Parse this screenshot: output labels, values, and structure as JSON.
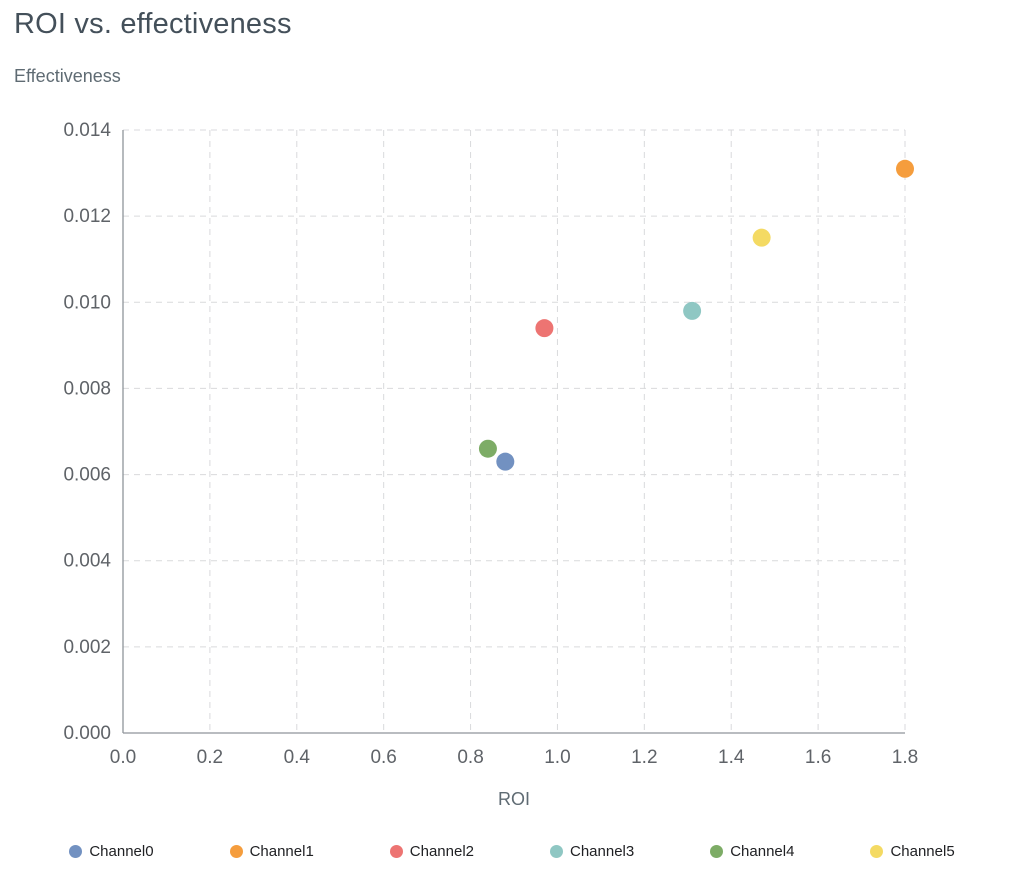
{
  "chart_data": {
    "type": "scatter",
    "title": "ROI vs. effectiveness",
    "xlabel": "ROI",
    "ylabel": "Effectiveness",
    "xlim": [
      0.0,
      1.8
    ],
    "ylim": [
      0.0,
      0.014
    ],
    "x_ticks": [
      0.0,
      0.2,
      0.4,
      0.6,
      0.8,
      1.0,
      1.2,
      1.4,
      1.6,
      1.8
    ],
    "x_tick_labels": [
      "0.0",
      "0.2",
      "0.4",
      "0.6",
      "0.8",
      "1.0",
      "1.2",
      "1.4",
      "1.6",
      "1.8"
    ],
    "y_ticks": [
      0.0,
      0.002,
      0.004,
      0.006,
      0.008,
      0.01,
      0.012,
      0.014
    ],
    "y_tick_labels": [
      "0.000",
      "0.002",
      "0.004",
      "0.006",
      "0.008",
      "0.010",
      "0.012",
      "0.014"
    ],
    "grid": true,
    "grid_style": "dashed",
    "legend_position": "bottom",
    "series": [
      {
        "name": "Channel0",
        "color": "#7291c1",
        "points": [
          {
            "x": 0.88,
            "y": 0.0063
          }
        ]
      },
      {
        "name": "Channel1",
        "color": "#f59d3d",
        "points": [
          {
            "x": 1.8,
            "y": 0.0131
          }
        ]
      },
      {
        "name": "Channel2",
        "color": "#ed7472",
        "points": [
          {
            "x": 0.97,
            "y": 0.0094
          }
        ]
      },
      {
        "name": "Channel3",
        "color": "#8fc7c3",
        "points": [
          {
            "x": 1.31,
            "y": 0.0098
          }
        ]
      },
      {
        "name": "Channel4",
        "color": "#7dac66",
        "points": [
          {
            "x": 0.84,
            "y": 0.0066
          }
        ]
      },
      {
        "name": "Channel5",
        "color": "#f4da63",
        "points": [
          {
            "x": 1.47,
            "y": 0.0115
          }
        ]
      }
    ],
    "colors": {
      "grid": "#d9dadc",
      "axis": "#8f959a",
      "tick_label": "#5f6368",
      "axis_title": "#5f6b73",
      "title": "#44505a"
    }
  }
}
